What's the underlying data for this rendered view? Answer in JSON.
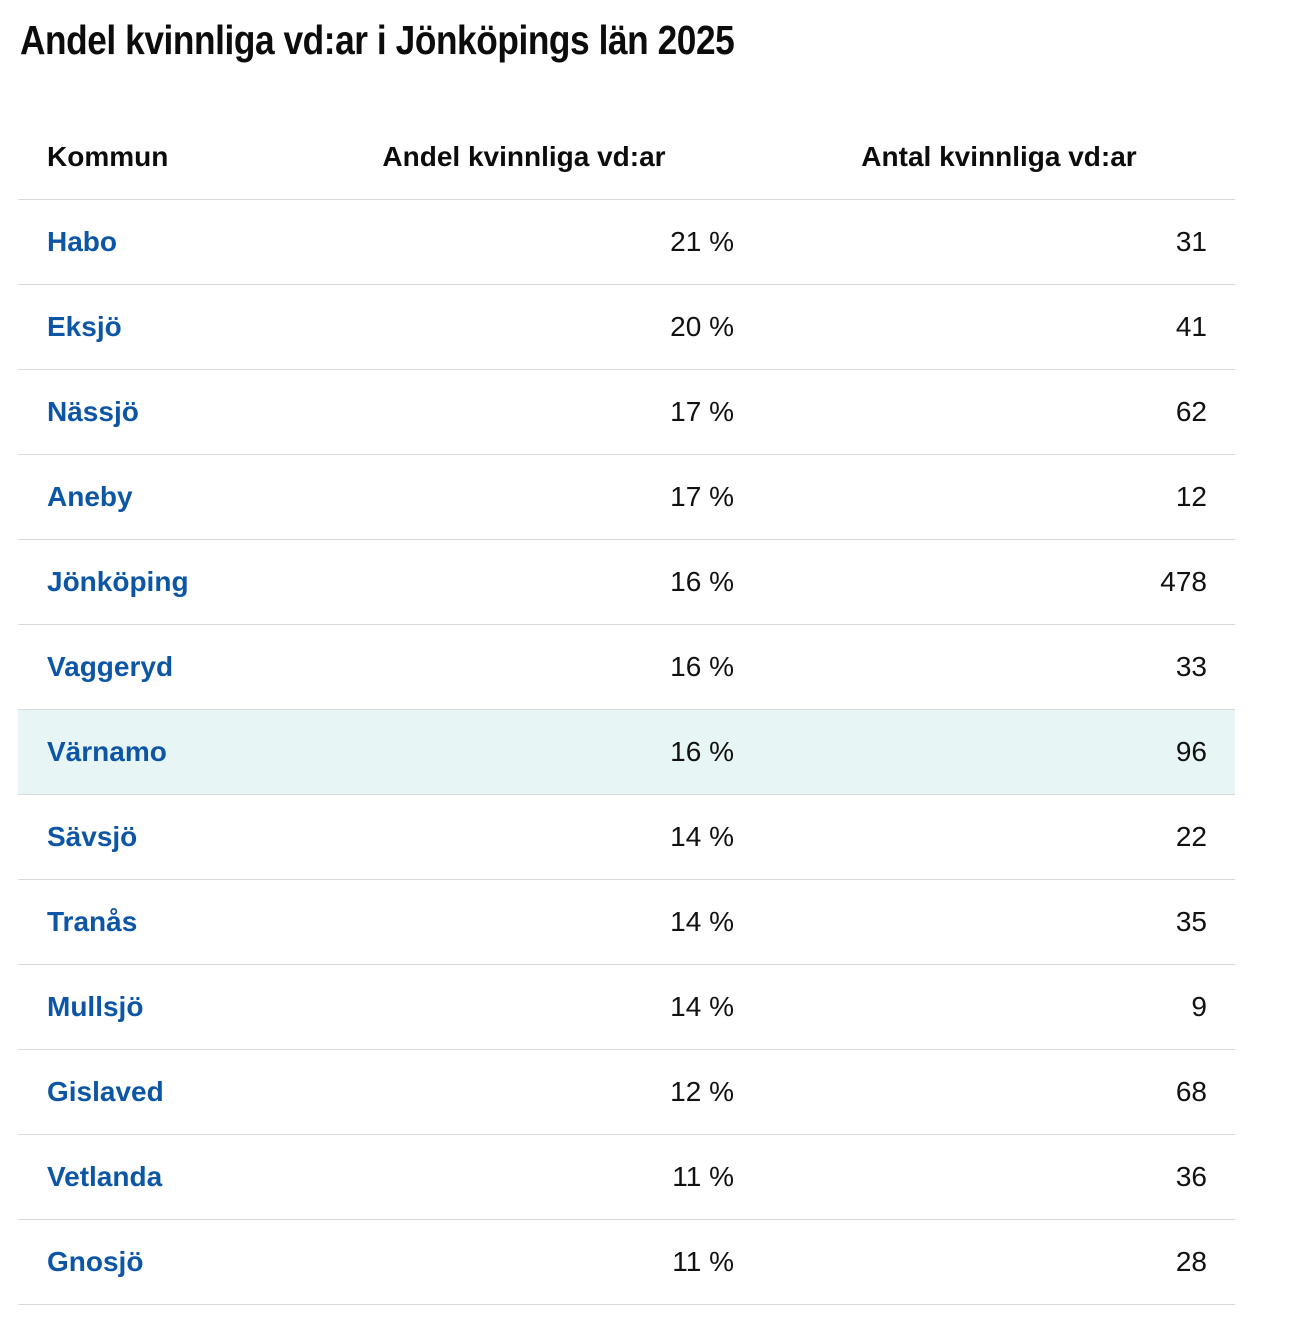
{
  "page": {
    "title": "Andel kvinnliga vd:ar i Jönköpings län 2025"
  },
  "table": {
    "columns": [
      "Kommun",
      "Andel kvinnliga vd:ar",
      "Antal kvinnliga vd:ar"
    ],
    "rows": [
      {
        "kommun": "Habo",
        "andel": "21 %",
        "antal": "31",
        "highlighted": false
      },
      {
        "kommun": "Eksjö",
        "andel": "20 %",
        "antal": "41",
        "highlighted": false
      },
      {
        "kommun": "Nässjö",
        "andel": "17 %",
        "antal": "62",
        "highlighted": false
      },
      {
        "kommun": "Aneby",
        "andel": "17 %",
        "antal": "12",
        "highlighted": false
      },
      {
        "kommun": "Jönköping",
        "andel": "16 %",
        "antal": "478",
        "highlighted": false
      },
      {
        "kommun": "Vaggeryd",
        "andel": "16 %",
        "antal": "33",
        "highlighted": false
      },
      {
        "kommun": "Värnamo",
        "andel": "16 %",
        "antal": "96",
        "highlighted": true
      },
      {
        "kommun": "Sävsjö",
        "andel": "14 %",
        "antal": "22",
        "highlighted": false
      },
      {
        "kommun": "Tranås",
        "andel": "14 %",
        "antal": "35",
        "highlighted": false
      },
      {
        "kommun": "Mullsjö",
        "andel": "14 %",
        "antal": "9",
        "highlighted": false
      },
      {
        "kommun": "Gislaved",
        "andel": "12 %",
        "antal": "68",
        "highlighted": false
      },
      {
        "kommun": "Vetlanda",
        "andel": "11 %",
        "antal": "36",
        "highlighted": false
      },
      {
        "kommun": "Gnosjö",
        "andel": "11 %",
        "antal": "28",
        "highlighted": false
      }
    ]
  },
  "colors": {
    "link_blue": "#0d56a6",
    "highlight_row_background": "#e7f6f5",
    "divider": "#dadada",
    "text": "#111111"
  },
  "chart_data": {
    "type": "table",
    "title": "Andel kvinnliga vd:ar i Jönköpings län 2025",
    "columns": [
      "Kommun",
      "Andel kvinnliga vd:ar",
      "Antal kvinnliga vd:ar"
    ],
    "unit_share": "%",
    "highlighted_row": "Värnamo",
    "rows": [
      {
        "kommun": "Habo",
        "andel_procent": 21,
        "antal": 31
      },
      {
        "kommun": "Eksjö",
        "andel_procent": 20,
        "antal": 41
      },
      {
        "kommun": "Nässjö",
        "andel_procent": 17,
        "antal": 62
      },
      {
        "kommun": "Aneby",
        "andel_procent": 17,
        "antal": 12
      },
      {
        "kommun": "Jönköping",
        "andel_procent": 16,
        "antal": 478
      },
      {
        "kommun": "Vaggeryd",
        "andel_procent": 16,
        "antal": 33
      },
      {
        "kommun": "Värnamo",
        "andel_procent": 16,
        "antal": 96
      },
      {
        "kommun": "Sävsjö",
        "andel_procent": 14,
        "antal": 22
      },
      {
        "kommun": "Tranås",
        "andel_procent": 14,
        "antal": 35
      },
      {
        "kommun": "Mullsjö",
        "andel_procent": 14,
        "antal": 9
      },
      {
        "kommun": "Gislaved",
        "andel_procent": 12,
        "antal": 68
      },
      {
        "kommun": "Vetlanda",
        "andel_procent": 11,
        "antal": 36
      },
      {
        "kommun": "Gnosjö",
        "andel_procent": 11,
        "antal": 28
      }
    ]
  }
}
